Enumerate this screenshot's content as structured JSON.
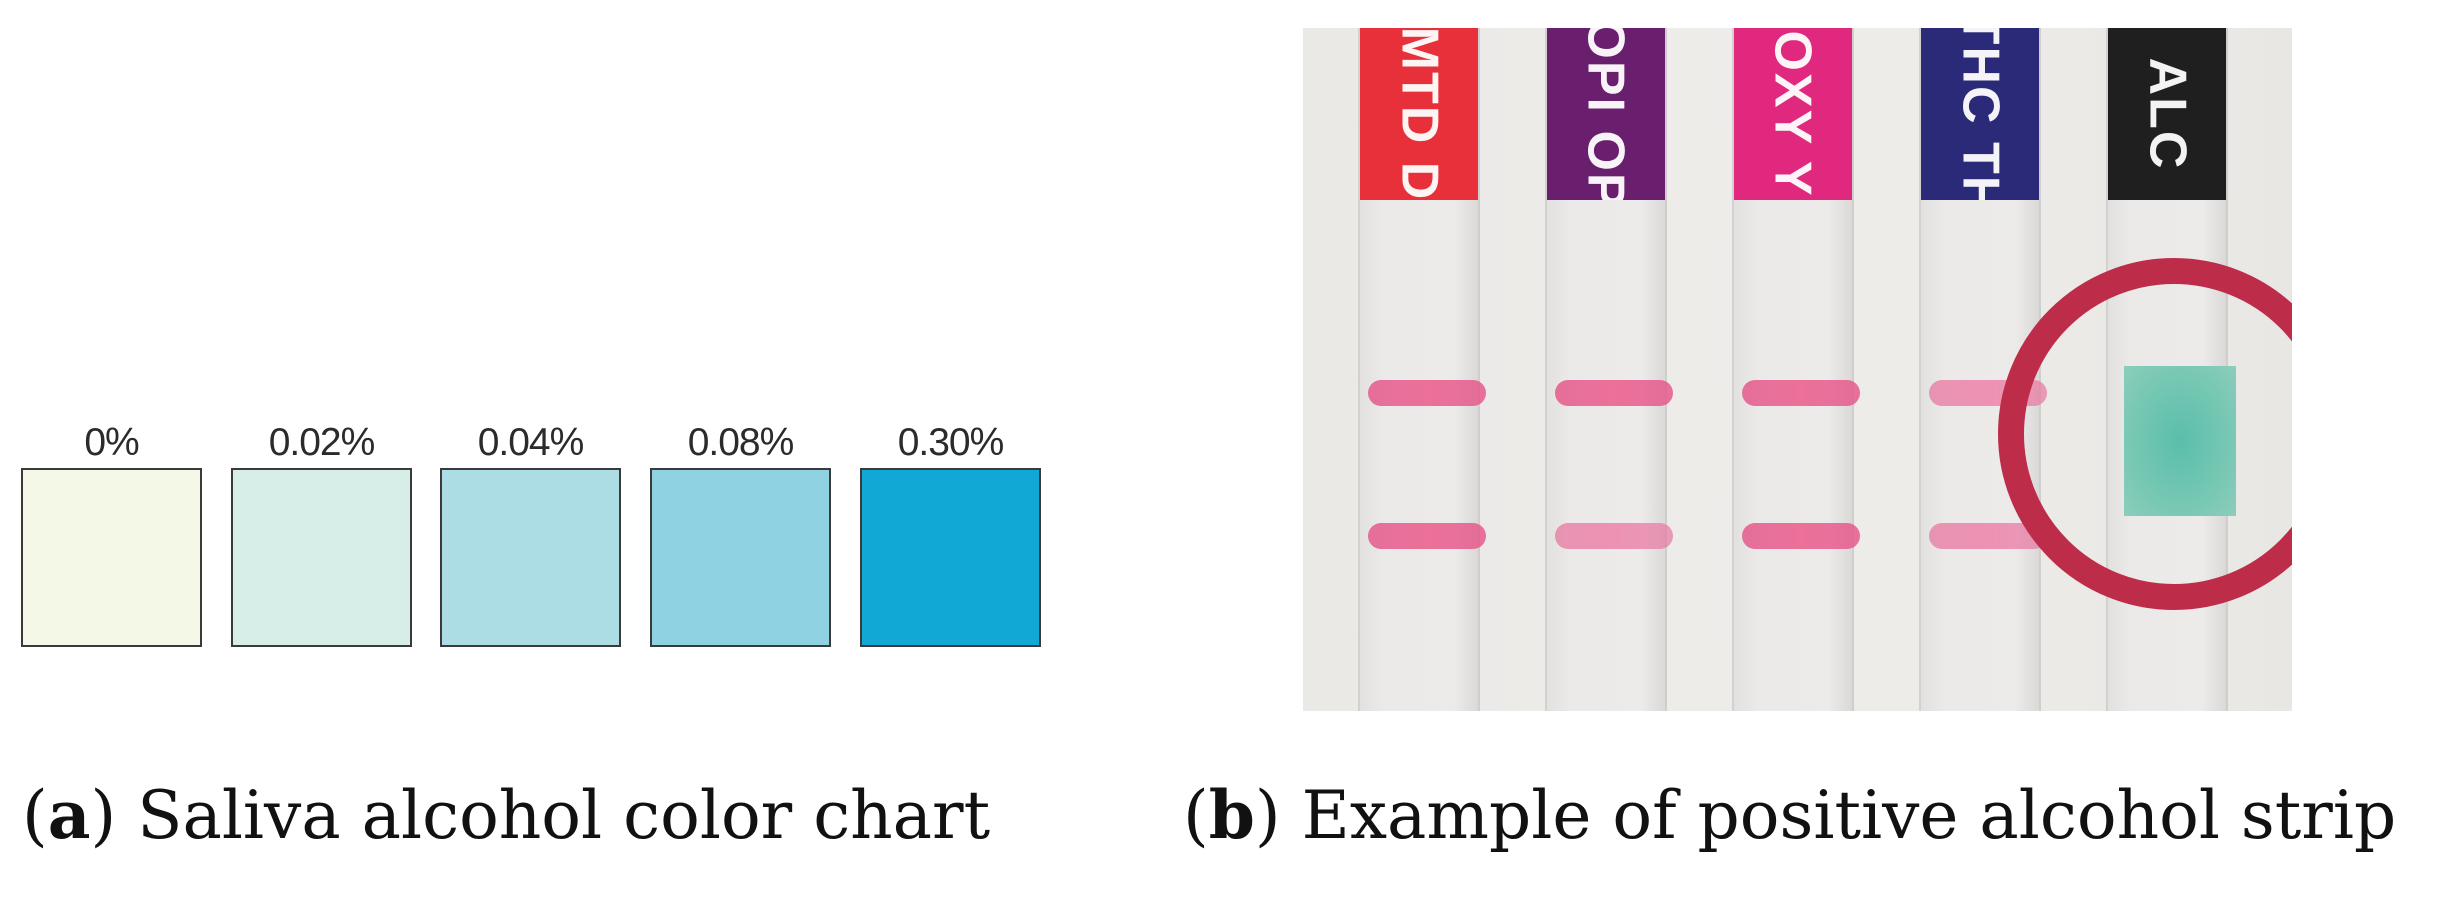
{
  "panel_a": {
    "swatches": [
      {
        "label": "0%",
        "color": "#f4f8e7"
      },
      {
        "label": "0.02%",
        "color": "#d7ede7"
      },
      {
        "label": "0.04%",
        "color": "#acdde4"
      },
      {
        "label": "0.08%",
        "color": "#8fd3e3"
      },
      {
        "label": "0.30%",
        "color": "#11a8d5"
      }
    ],
    "caption_letter": "a",
    "caption_text": "Saliva alcohol color chart"
  },
  "panel_b": {
    "strips": [
      {
        "label": "MTD  D",
        "color": "#e8303a",
        "lines": 2,
        "pad": false
      },
      {
        "label": "OPI  OP",
        "color": "#6a1f6e",
        "lines": 2,
        "pad": false
      },
      {
        "label": "OXY  Y",
        "color": "#e0287e",
        "lines": 2,
        "pad": false
      },
      {
        "label": "THC  TH",
        "color": "#2b2a78",
        "lines": 2,
        "pad": false
      },
      {
        "label": "ALC",
        "color": "#1f1f1f",
        "lines": 0,
        "pad": true,
        "pad_color": "#5dbfa8"
      }
    ],
    "highlight_color": "#bd2d4a",
    "caption_letter": "b",
    "caption_text": "Example of positive alcohol strip"
  }
}
